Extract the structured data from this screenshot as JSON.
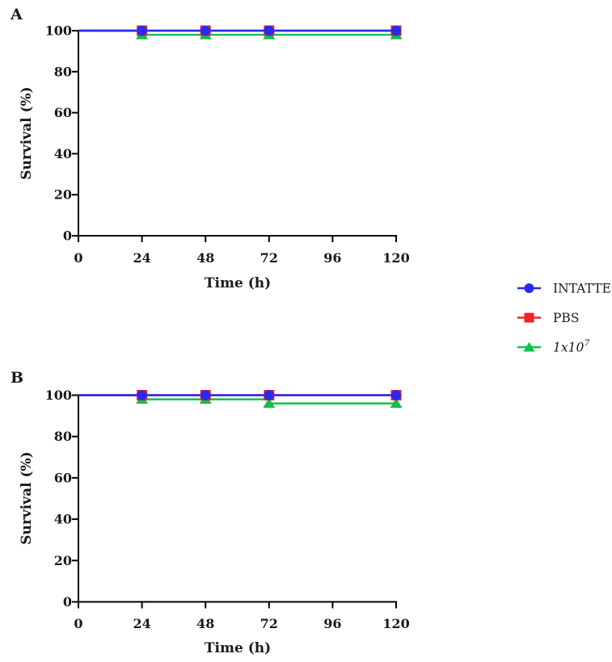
{
  "chart_data": [
    {
      "type": "line",
      "panel_label": "A",
      "title": "",
      "xlabel": "Time (h)",
      "ylabel": "Survival (%)",
      "xlim": [
        0,
        120
      ],
      "ylim": [
        0,
        100
      ],
      "x_ticks": [
        0,
        24,
        48,
        72,
        96,
        120
      ],
      "y_ticks": [
        0,
        20,
        40,
        60,
        80,
        100
      ],
      "grid": false,
      "legend_position": "outside-right",
      "series": [
        {
          "name": "INTATTE",
          "color": "#2b29f0",
          "marker": "circle",
          "marker_x": [
            24,
            48,
            72,
            120
          ],
          "marker_y": [
            100,
            100,
            100,
            100
          ],
          "step_points": [
            [
              0,
              100
            ],
            [
              120,
              100
            ]
          ]
        },
        {
          "name": "PBS",
          "color": "#ee2324",
          "marker": "square",
          "marker_x": [
            24,
            48,
            72,
            120
          ],
          "marker_y": [
            100,
            100,
            100,
            100
          ],
          "step_points": [
            [
              0,
              100
            ],
            [
              120,
              100
            ]
          ]
        },
        {
          "name": "1x10^7",
          "color": "#0cc24a",
          "marker": "triangle",
          "marker_x": [
            24,
            48,
            72,
            120
          ],
          "marker_y": [
            98,
            98,
            98,
            98
          ],
          "step_points": [
            [
              0,
              100
            ],
            [
              24,
              100
            ],
            [
              24,
              98
            ],
            [
              120,
              98
            ]
          ]
        }
      ]
    },
    {
      "type": "line",
      "panel_label": "B",
      "title": "",
      "xlabel": "Time (h)",
      "ylabel": "Survival (%)",
      "xlim": [
        0,
        120
      ],
      "ylim": [
        0,
        100
      ],
      "x_ticks": [
        0,
        24,
        48,
        72,
        96,
        120
      ],
      "y_ticks": [
        0,
        20,
        40,
        60,
        80,
        100
      ],
      "grid": false,
      "legend_position": "none",
      "series": [
        {
          "name": "INTATTE",
          "color": "#2b29f0",
          "marker": "circle",
          "marker_x": [
            24,
            48,
            72,
            120
          ],
          "marker_y": [
            100,
            100,
            100,
            100
          ],
          "step_points": [
            [
              0,
              100
            ],
            [
              120,
              100
            ]
          ]
        },
        {
          "name": "PBS",
          "color": "#ee2324",
          "marker": "square",
          "marker_x": [
            24,
            48,
            72,
            120
          ],
          "marker_y": [
            100,
            100,
            100,
            100
          ],
          "step_points": [
            [
              0,
              100
            ],
            [
              120,
              100
            ]
          ]
        },
        {
          "name": "1x10^7",
          "color": "#0cc24a",
          "marker": "triangle",
          "marker_x": [
            24,
            48,
            72,
            120
          ],
          "marker_y": [
            98,
            98,
            96,
            96
          ],
          "step_points": [
            [
              0,
              100
            ],
            [
              24,
              100
            ],
            [
              24,
              98
            ],
            [
              72,
              98
            ],
            [
              72,
              96
            ],
            [
              120,
              96
            ]
          ]
        }
      ]
    }
  ],
  "legend": {
    "entries": [
      {
        "label": "INTATTE",
        "italic": false,
        "superscript": "",
        "color": "#2b29f0",
        "marker": "circle"
      },
      {
        "label": "PBS",
        "italic": false,
        "superscript": "",
        "color": "#ee2324",
        "marker": "square"
      },
      {
        "label": "1x10",
        "italic": true,
        "superscript": "7",
        "color": "#0cc24a",
        "marker": "triangle"
      }
    ]
  },
  "colors": {
    "axis": "#000000",
    "blue": "#2b29f0",
    "red": "#ee2324",
    "green": "#0cc24a"
  }
}
